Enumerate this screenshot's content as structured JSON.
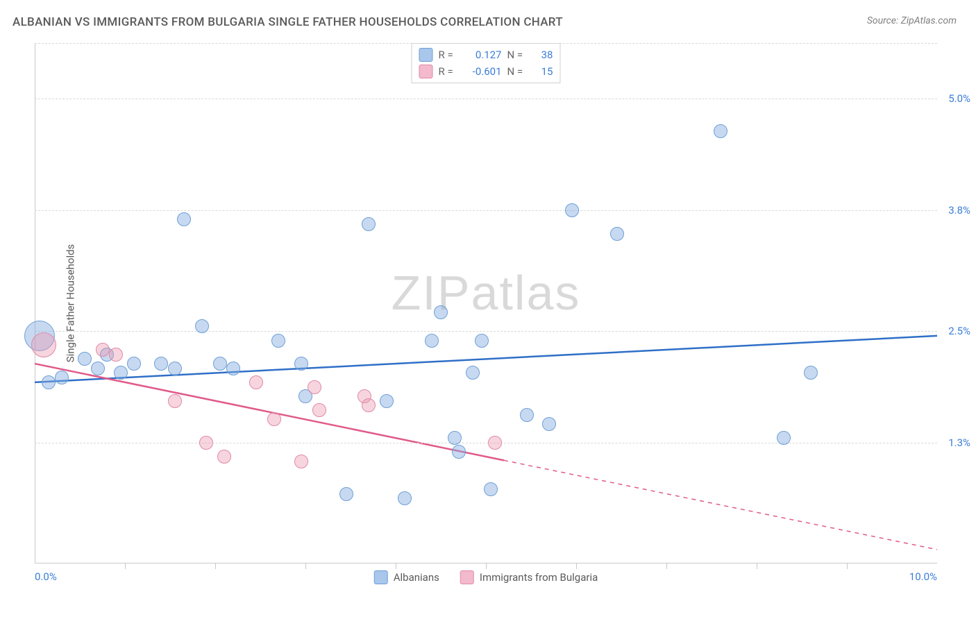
{
  "title": "ALBANIAN VS IMMIGRANTS FROM BULGARIA SINGLE FATHER HOUSEHOLDS CORRELATION CHART",
  "source": "Source: ZipAtlas.com",
  "ylabel": "Single Father Households",
  "watermark_a": "ZIP",
  "watermark_b": "atlas",
  "chart": {
    "type": "scatter",
    "xlim": [
      0,
      10
    ],
    "ylim": [
      0,
      5.6
    ],
    "x_ticks_labeled": [
      {
        "x": 0.0,
        "label": "0.0%"
      },
      {
        "x": 10.0,
        "label": "10.0%"
      }
    ],
    "x_tick_marks": [
      1,
      2,
      3,
      4,
      5,
      6,
      7,
      8,
      9
    ],
    "y_ticks": [
      {
        "y": 1.3,
        "label": "1.3%"
      },
      {
        "y": 2.5,
        "label": "2.5%"
      },
      {
        "y": 3.8,
        "label": "3.8%"
      },
      {
        "y": 5.0,
        "label": "5.0%"
      }
    ],
    "background_color": "#ffffff",
    "grid_color": "#d8d8d8",
    "axis_color": "#c8c8c8"
  },
  "series": [
    {
      "key": "albanians",
      "label": "Albanians",
      "fill": "rgba(130,170,225,0.45)",
      "stroke": "#6d9fd6",
      "line_color": "#2f6fc7",
      "swatch_fill": "#a9c6eb",
      "swatch_border": "#6d9fd6",
      "R": "0.127",
      "N": "38",
      "regression": {
        "x1": 0,
        "y1": 1.95,
        "x2": 10,
        "y2": 2.45,
        "solid_until_x": 10
      },
      "points": [
        {
          "x": 0.05,
          "y": 2.45,
          "r": 22
        },
        {
          "x": 0.15,
          "y": 1.95,
          "r": 10
        },
        {
          "x": 0.3,
          "y": 2.0,
          "r": 10
        },
        {
          "x": 0.55,
          "y": 2.2,
          "r": 10
        },
        {
          "x": 0.7,
          "y": 2.1,
          "r": 10
        },
        {
          "x": 0.8,
          "y": 2.25,
          "r": 10
        },
        {
          "x": 0.95,
          "y": 2.05,
          "r": 10
        },
        {
          "x": 1.1,
          "y": 2.15,
          "r": 10
        },
        {
          "x": 1.4,
          "y": 2.15,
          "r": 10
        },
        {
          "x": 1.55,
          "y": 2.1,
          "r": 10
        },
        {
          "x": 1.65,
          "y": 3.7,
          "r": 10
        },
        {
          "x": 1.85,
          "y": 2.55,
          "r": 10
        },
        {
          "x": 2.05,
          "y": 2.15,
          "r": 10
        },
        {
          "x": 2.2,
          "y": 2.1,
          "r": 10
        },
        {
          "x": 2.7,
          "y": 2.4,
          "r": 10
        },
        {
          "x": 2.95,
          "y": 2.15,
          "r": 10
        },
        {
          "x": 3.0,
          "y": 1.8,
          "r": 10
        },
        {
          "x": 3.45,
          "y": 0.75,
          "r": 10
        },
        {
          "x": 3.7,
          "y": 3.65,
          "r": 10
        },
        {
          "x": 3.9,
          "y": 1.75,
          "r": 10
        },
        {
          "x": 4.1,
          "y": 0.7,
          "r": 10
        },
        {
          "x": 4.4,
          "y": 2.4,
          "r": 10
        },
        {
          "x": 4.5,
          "y": 2.7,
          "r": 10
        },
        {
          "x": 4.65,
          "y": 1.35,
          "r": 10
        },
        {
          "x": 4.7,
          "y": 1.2,
          "r": 10
        },
        {
          "x": 4.85,
          "y": 2.05,
          "r": 10
        },
        {
          "x": 4.95,
          "y": 2.4,
          "r": 10
        },
        {
          "x": 5.05,
          "y": 0.8,
          "r": 10
        },
        {
          "x": 5.45,
          "y": 1.6,
          "r": 10
        },
        {
          "x": 5.7,
          "y": 1.5,
          "r": 10
        },
        {
          "x": 5.95,
          "y": 3.8,
          "r": 10
        },
        {
          "x": 6.45,
          "y": 3.55,
          "r": 10
        },
        {
          "x": 7.6,
          "y": 4.65,
          "r": 10
        },
        {
          "x": 8.3,
          "y": 1.35,
          "r": 10
        },
        {
          "x": 8.6,
          "y": 2.05,
          "r": 10
        }
      ]
    },
    {
      "key": "bulgarians",
      "label": "Immigrants from Bulgaria",
      "fill": "rgba(235,150,175,0.40)",
      "stroke": "#e089a5",
      "line_color": "#e05a8a",
      "swatch_fill": "#f3b9cc",
      "swatch_border": "#e089a5",
      "R": "-0.601",
      "N": "15",
      "regression": {
        "x1": 0,
        "y1": 2.15,
        "x2": 10,
        "y2": 0.15,
        "solid_until_x": 5.2
      },
      "points": [
        {
          "x": 0.1,
          "y": 2.35,
          "r": 18
        },
        {
          "x": 0.75,
          "y": 2.3,
          "r": 10
        },
        {
          "x": 0.9,
          "y": 2.25,
          "r": 10
        },
        {
          "x": 1.55,
          "y": 1.75,
          "r": 10
        },
        {
          "x": 1.9,
          "y": 1.3,
          "r": 10
        },
        {
          "x": 2.1,
          "y": 1.15,
          "r": 10
        },
        {
          "x": 2.45,
          "y": 1.95,
          "r": 10
        },
        {
          "x": 2.65,
          "y": 1.55,
          "r": 10
        },
        {
          "x": 2.95,
          "y": 1.1,
          "r": 10
        },
        {
          "x": 3.1,
          "y": 1.9,
          "r": 10
        },
        {
          "x": 3.15,
          "y": 1.65,
          "r": 10
        },
        {
          "x": 3.65,
          "y": 1.8,
          "r": 10
        },
        {
          "x": 3.7,
          "y": 1.7,
          "r": 10
        },
        {
          "x": 5.1,
          "y": 1.3,
          "r": 10
        }
      ]
    }
  ],
  "legend_top_labels": {
    "R": "R =",
    "N": "N ="
  }
}
